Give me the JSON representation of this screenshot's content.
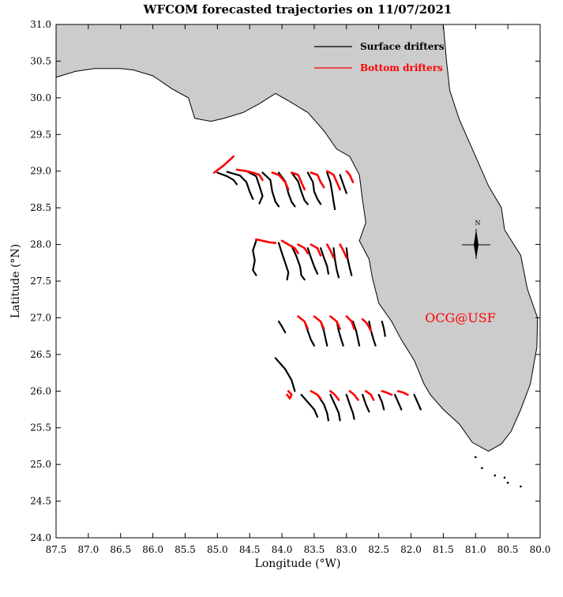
{
  "title": "WFCOM forecasted trajectories on 11/07/2021",
  "credit": "OCG@USF",
  "compass_label": "N",
  "colors": {
    "land": "#cccccc",
    "coast": "#000000",
    "surface": "#000000",
    "bottom": "#ff0000",
    "credit": "#ff0000"
  },
  "chart_data": {
    "type": "map",
    "xlabel": "Longitude (°W)",
    "ylabel": "Latitude (°N)",
    "xlim": [
      87.5,
      80.0
    ],
    "ylim": [
      24.0,
      31.0
    ],
    "xticks": [
      "87.5",
      "87.0",
      "86.5",
      "86.0",
      "85.5",
      "85.0",
      "84.5",
      "84.0",
      "83.5",
      "83.0",
      "82.5",
      "82.0",
      "81.5",
      "81.0",
      "80.5",
      "80.0"
    ],
    "yticks": [
      "24.0",
      "24.5",
      "25.0",
      "25.5",
      "26.0",
      "26.5",
      "27.0",
      "27.5",
      "28.0",
      "28.5",
      "29.0",
      "29.5",
      "30.0",
      "30.5",
      "31.0"
    ],
    "legend": [
      {
        "name": "Surface drifters",
        "color": "#000000"
      },
      {
        "name": "Bottom drifters",
        "color": "#ff0000"
      }
    ],
    "coastline": [
      [
        87.5,
        30.28
      ],
      [
        87.2,
        30.36
      ],
      [
        86.9,
        30.4
      ],
      [
        86.5,
        30.4
      ],
      [
        86.3,
        30.38
      ],
      [
        86.0,
        30.3
      ],
      [
        85.7,
        30.12
      ],
      [
        85.45,
        30.0
      ],
      [
        85.35,
        29.72
      ],
      [
        85.1,
        29.68
      ],
      [
        84.9,
        29.72
      ],
      [
        84.6,
        29.8
      ],
      [
        84.35,
        29.92
      ],
      [
        84.1,
        30.06
      ],
      [
        83.9,
        29.96
      ],
      [
        83.6,
        29.8
      ],
      [
        83.35,
        29.55
      ],
      [
        83.15,
        29.3
      ],
      [
        82.95,
        29.2
      ],
      [
        82.8,
        28.95
      ],
      [
        82.75,
        28.6
      ],
      [
        82.7,
        28.3
      ],
      [
        82.8,
        28.05
      ],
      [
        82.65,
        27.8
      ],
      [
        82.6,
        27.55
      ],
      [
        82.5,
        27.2
      ],
      [
        82.3,
        26.95
      ],
      [
        82.15,
        26.7
      ],
      [
        81.95,
        26.42
      ],
      [
        81.8,
        26.1
      ],
      [
        81.7,
        25.95
      ],
      [
        81.5,
        25.75
      ],
      [
        81.25,
        25.55
      ],
      [
        81.05,
        25.3
      ],
      [
        80.8,
        25.18
      ],
      [
        80.6,
        25.28
      ],
      [
        80.45,
        25.45
      ],
      [
        80.3,
        25.75
      ],
      [
        80.15,
        26.1
      ],
      [
        80.05,
        26.6
      ],
      [
        80.04,
        27.0
      ],
      [
        80.2,
        27.4
      ],
      [
        80.3,
        27.85
      ],
      [
        80.55,
        28.2
      ],
      [
        80.6,
        28.5
      ],
      [
        80.8,
        28.8
      ],
      [
        81.0,
        29.2
      ],
      [
        81.25,
        29.7
      ],
      [
        81.4,
        30.1
      ],
      [
        81.45,
        30.5
      ],
      [
        81.5,
        31.0
      ],
      [
        87.5,
        31.0
      ]
    ],
    "keys": [
      [
        81.0,
        25.1
      ],
      [
        80.9,
        24.95
      ],
      [
        80.7,
        24.85
      ],
      [
        80.5,
        24.75
      ],
      [
        80.3,
        24.7
      ],
      [
        80.55,
        24.82
      ]
    ],
    "surface_drifters": [
      [
        [
          85.0,
          28.98
        ],
        [
          84.85,
          28.93
        ],
        [
          84.75,
          28.88
        ],
        [
          84.7,
          28.82
        ]
      ],
      [
        [
          84.85,
          28.99
        ],
        [
          84.65,
          28.94
        ],
        [
          84.55,
          28.85
        ],
        [
          84.5,
          28.72
        ],
        [
          84.45,
          28.62
        ]
      ],
      [
        [
          84.55,
          29.0
        ],
        [
          84.4,
          28.93
        ],
        [
          84.35,
          28.8
        ],
        [
          84.3,
          28.66
        ],
        [
          84.35,
          28.56
        ]
      ],
      [
        [
          84.3,
          28.98
        ],
        [
          84.18,
          28.88
        ],
        [
          84.15,
          28.72
        ],
        [
          84.1,
          28.58
        ],
        [
          84.05,
          28.52
        ]
      ],
      [
        [
          84.05,
          28.98
        ],
        [
          83.95,
          28.86
        ],
        [
          83.9,
          28.7
        ],
        [
          83.85,
          28.58
        ],
        [
          83.8,
          28.52
        ]
      ],
      [
        [
          83.85,
          28.98
        ],
        [
          83.75,
          28.86
        ],
        [
          83.7,
          28.72
        ],
        [
          83.65,
          28.6
        ],
        [
          83.6,
          28.55
        ]
      ],
      [
        [
          83.6,
          28.98
        ],
        [
          83.52,
          28.85
        ],
        [
          83.5,
          28.72
        ],
        [
          83.45,
          28.62
        ],
        [
          83.4,
          28.55
        ]
      ],
      [
        [
          83.3,
          28.98
        ],
        [
          83.25,
          28.85
        ],
        [
          83.22,
          28.7
        ],
        [
          83.2,
          28.58
        ],
        [
          83.18,
          28.48
        ]
      ],
      [
        [
          83.1,
          28.95
        ],
        [
          83.05,
          28.82
        ],
        [
          83.0,
          28.7
        ]
      ],
      [
        [
          84.4,
          28.05
        ],
        [
          84.45,
          27.92
        ],
        [
          84.42,
          27.78
        ],
        [
          84.45,
          27.65
        ],
        [
          84.4,
          27.58
        ]
      ],
      [
        [
          84.05,
          28.02
        ],
        [
          84.0,
          27.88
        ],
        [
          83.95,
          27.75
        ],
        [
          83.9,
          27.62
        ],
        [
          83.92,
          27.52
        ]
      ],
      [
        [
          83.85,
          27.98
        ],
        [
          83.78,
          27.85
        ],
        [
          83.72,
          27.7
        ],
        [
          83.7,
          27.58
        ],
        [
          83.65,
          27.52
        ]
      ],
      [
        [
          83.6,
          27.95
        ],
        [
          83.55,
          27.82
        ],
        [
          83.5,
          27.7
        ],
        [
          83.45,
          27.6
        ]
      ],
      [
        [
          83.4,
          27.95
        ],
        [
          83.35,
          27.82
        ],
        [
          83.3,
          27.7
        ],
        [
          83.28,
          27.6
        ]
      ],
      [
        [
          83.2,
          27.95
        ],
        [
          83.18,
          27.8
        ],
        [
          83.15,
          27.65
        ],
        [
          83.12,
          27.55
        ]
      ],
      [
        [
          83.0,
          27.95
        ],
        [
          82.98,
          27.8
        ],
        [
          82.95,
          27.68
        ],
        [
          82.92,
          27.58
        ]
      ],
      [
        [
          84.05,
          26.95
        ],
        [
          84.0,
          26.88
        ],
        [
          83.95,
          26.8
        ]
      ],
      [
        [
          83.65,
          26.95
        ],
        [
          83.6,
          26.82
        ],
        [
          83.55,
          26.7
        ],
        [
          83.5,
          26.62
        ]
      ],
      [
        [
          83.4,
          26.95
        ],
        [
          83.35,
          26.82
        ],
        [
          83.32,
          26.7
        ],
        [
          83.3,
          26.62
        ]
      ],
      [
        [
          83.15,
          26.95
        ],
        [
          83.12,
          26.82
        ],
        [
          83.08,
          26.7
        ],
        [
          83.05,
          26.62
        ]
      ],
      [
        [
          82.9,
          26.95
        ],
        [
          82.85,
          26.82
        ],
        [
          82.82,
          26.7
        ],
        [
          82.8,
          26.62
        ]
      ],
      [
        [
          82.65,
          26.95
        ],
        [
          82.62,
          26.82
        ],
        [
          82.58,
          26.7
        ],
        [
          82.55,
          26.62
        ]
      ],
      [
        [
          82.45,
          26.95
        ],
        [
          82.42,
          26.85
        ],
        [
          82.4,
          26.75
        ]
      ],
      [
        [
          84.1,
          26.45
        ],
        [
          83.95,
          26.3
        ],
        [
          83.85,
          26.15
        ],
        [
          83.8,
          26.0
        ]
      ],
      [
        [
          83.7,
          25.95
        ],
        [
          83.6,
          25.85
        ],
        [
          83.5,
          25.75
        ],
        [
          83.45,
          25.65
        ]
      ],
      [
        [
          83.45,
          25.95
        ],
        [
          83.35,
          25.82
        ],
        [
          83.3,
          25.7
        ],
        [
          83.28,
          25.6
        ]
      ],
      [
        [
          83.25,
          25.95
        ],
        [
          83.18,
          25.82
        ],
        [
          83.12,
          25.7
        ],
        [
          83.1,
          25.6
        ]
      ],
      [
        [
          83.0,
          25.95
        ],
        [
          82.95,
          25.82
        ],
        [
          82.9,
          25.7
        ],
        [
          82.88,
          25.62
        ]
      ],
      [
        [
          82.75,
          25.95
        ],
        [
          82.7,
          25.82
        ],
        [
          82.65,
          25.72
        ]
      ],
      [
        [
          82.5,
          25.95
        ],
        [
          82.45,
          25.85
        ],
        [
          82.42,
          25.75
        ]
      ],
      [
        [
          82.25,
          25.95
        ],
        [
          82.2,
          25.85
        ],
        [
          82.15,
          25.75
        ]
      ],
      [
        [
          81.95,
          25.95
        ],
        [
          81.9,
          25.85
        ],
        [
          81.85,
          25.75
        ]
      ]
    ],
    "bottom_drifters": [
      [
        [
          85.05,
          28.98
        ],
        [
          84.9,
          29.08
        ],
        [
          84.75,
          29.2
        ]
      ],
      [
        [
          84.7,
          29.02
        ],
        [
          84.55,
          29.0
        ],
        [
          84.45,
          28.98
        ],
        [
          84.35,
          28.95
        ],
        [
          84.3,
          28.88
        ]
      ],
      [
        [
          84.15,
          28.98
        ],
        [
          84.05,
          28.95
        ],
        [
          83.95,
          28.85
        ],
        [
          83.9,
          28.75
        ]
      ],
      [
        [
          83.85,
          28.98
        ],
        [
          83.75,
          28.95
        ],
        [
          83.7,
          28.85
        ],
        [
          83.65,
          28.75
        ]
      ],
      [
        [
          83.55,
          28.98
        ],
        [
          83.45,
          28.95
        ],
        [
          83.4,
          28.85
        ],
        [
          83.35,
          28.78
        ]
      ],
      [
        [
          83.3,
          29.0
        ],
        [
          83.2,
          28.95
        ],
        [
          83.15,
          28.85
        ],
        [
          83.1,
          28.75
        ]
      ],
      [
        [
          83.0,
          29.0
        ],
        [
          82.95,
          28.95
        ],
        [
          82.9,
          28.85
        ]
      ],
      [
        [
          84.4,
          28.07
        ],
        [
          84.3,
          28.05
        ],
        [
          84.2,
          28.03
        ],
        [
          84.1,
          28.02
        ]
      ],
      [
        [
          84.0,
          28.05
        ],
        [
          83.9,
          28.0
        ],
        [
          83.8,
          27.95
        ],
        [
          83.75,
          27.88
        ]
      ],
      [
        [
          83.75,
          28.0
        ],
        [
          83.65,
          27.95
        ],
        [
          83.6,
          27.88
        ]
      ],
      [
        [
          83.55,
          28.0
        ],
        [
          83.45,
          27.95
        ],
        [
          83.4,
          27.85
        ]
      ],
      [
        [
          83.3,
          28.0
        ],
        [
          83.25,
          27.92
        ],
        [
          83.2,
          27.82
        ]
      ],
      [
        [
          83.1,
          28.0
        ],
        [
          83.05,
          27.92
        ],
        [
          83.0,
          27.82
        ]
      ],
      [
        [
          83.75,
          27.02
        ],
        [
          83.65,
          26.95
        ],
        [
          83.6,
          26.85
        ]
      ],
      [
        [
          83.5,
          27.02
        ],
        [
          83.4,
          26.95
        ],
        [
          83.35,
          26.85
        ]
      ],
      [
        [
          83.25,
          27.02
        ],
        [
          83.15,
          26.95
        ],
        [
          83.1,
          26.85
        ]
      ],
      [
        [
          83.0,
          27.02
        ],
        [
          82.92,
          26.95
        ],
        [
          82.88,
          26.85
        ]
      ],
      [
        [
          82.75,
          26.98
        ],
        [
          82.68,
          26.92
        ],
        [
          82.62,
          26.82
        ]
      ],
      [
        [
          83.9,
          26.0
        ],
        [
          83.85,
          25.95
        ],
        [
          83.88,
          25.9
        ],
        [
          83.92,
          25.95
        ]
      ],
      [
        [
          83.55,
          26.0
        ],
        [
          83.45,
          25.95
        ],
        [
          83.4,
          25.9
        ]
      ],
      [
        [
          83.25,
          26.0
        ],
        [
          83.18,
          25.95
        ],
        [
          83.12,
          25.88
        ]
      ],
      [
        [
          82.95,
          26.0
        ],
        [
          82.88,
          25.95
        ],
        [
          82.82,
          25.88
        ]
      ],
      [
        [
          82.7,
          26.0
        ],
        [
          82.62,
          25.95
        ],
        [
          82.58,
          25.88
        ]
      ],
      [
        [
          82.45,
          26.0
        ],
        [
          82.38,
          25.98
        ],
        [
          82.3,
          25.95
        ]
      ],
      [
        [
          82.2,
          26.0
        ],
        [
          82.12,
          25.98
        ],
        [
          82.05,
          25.95
        ]
      ]
    ]
  }
}
